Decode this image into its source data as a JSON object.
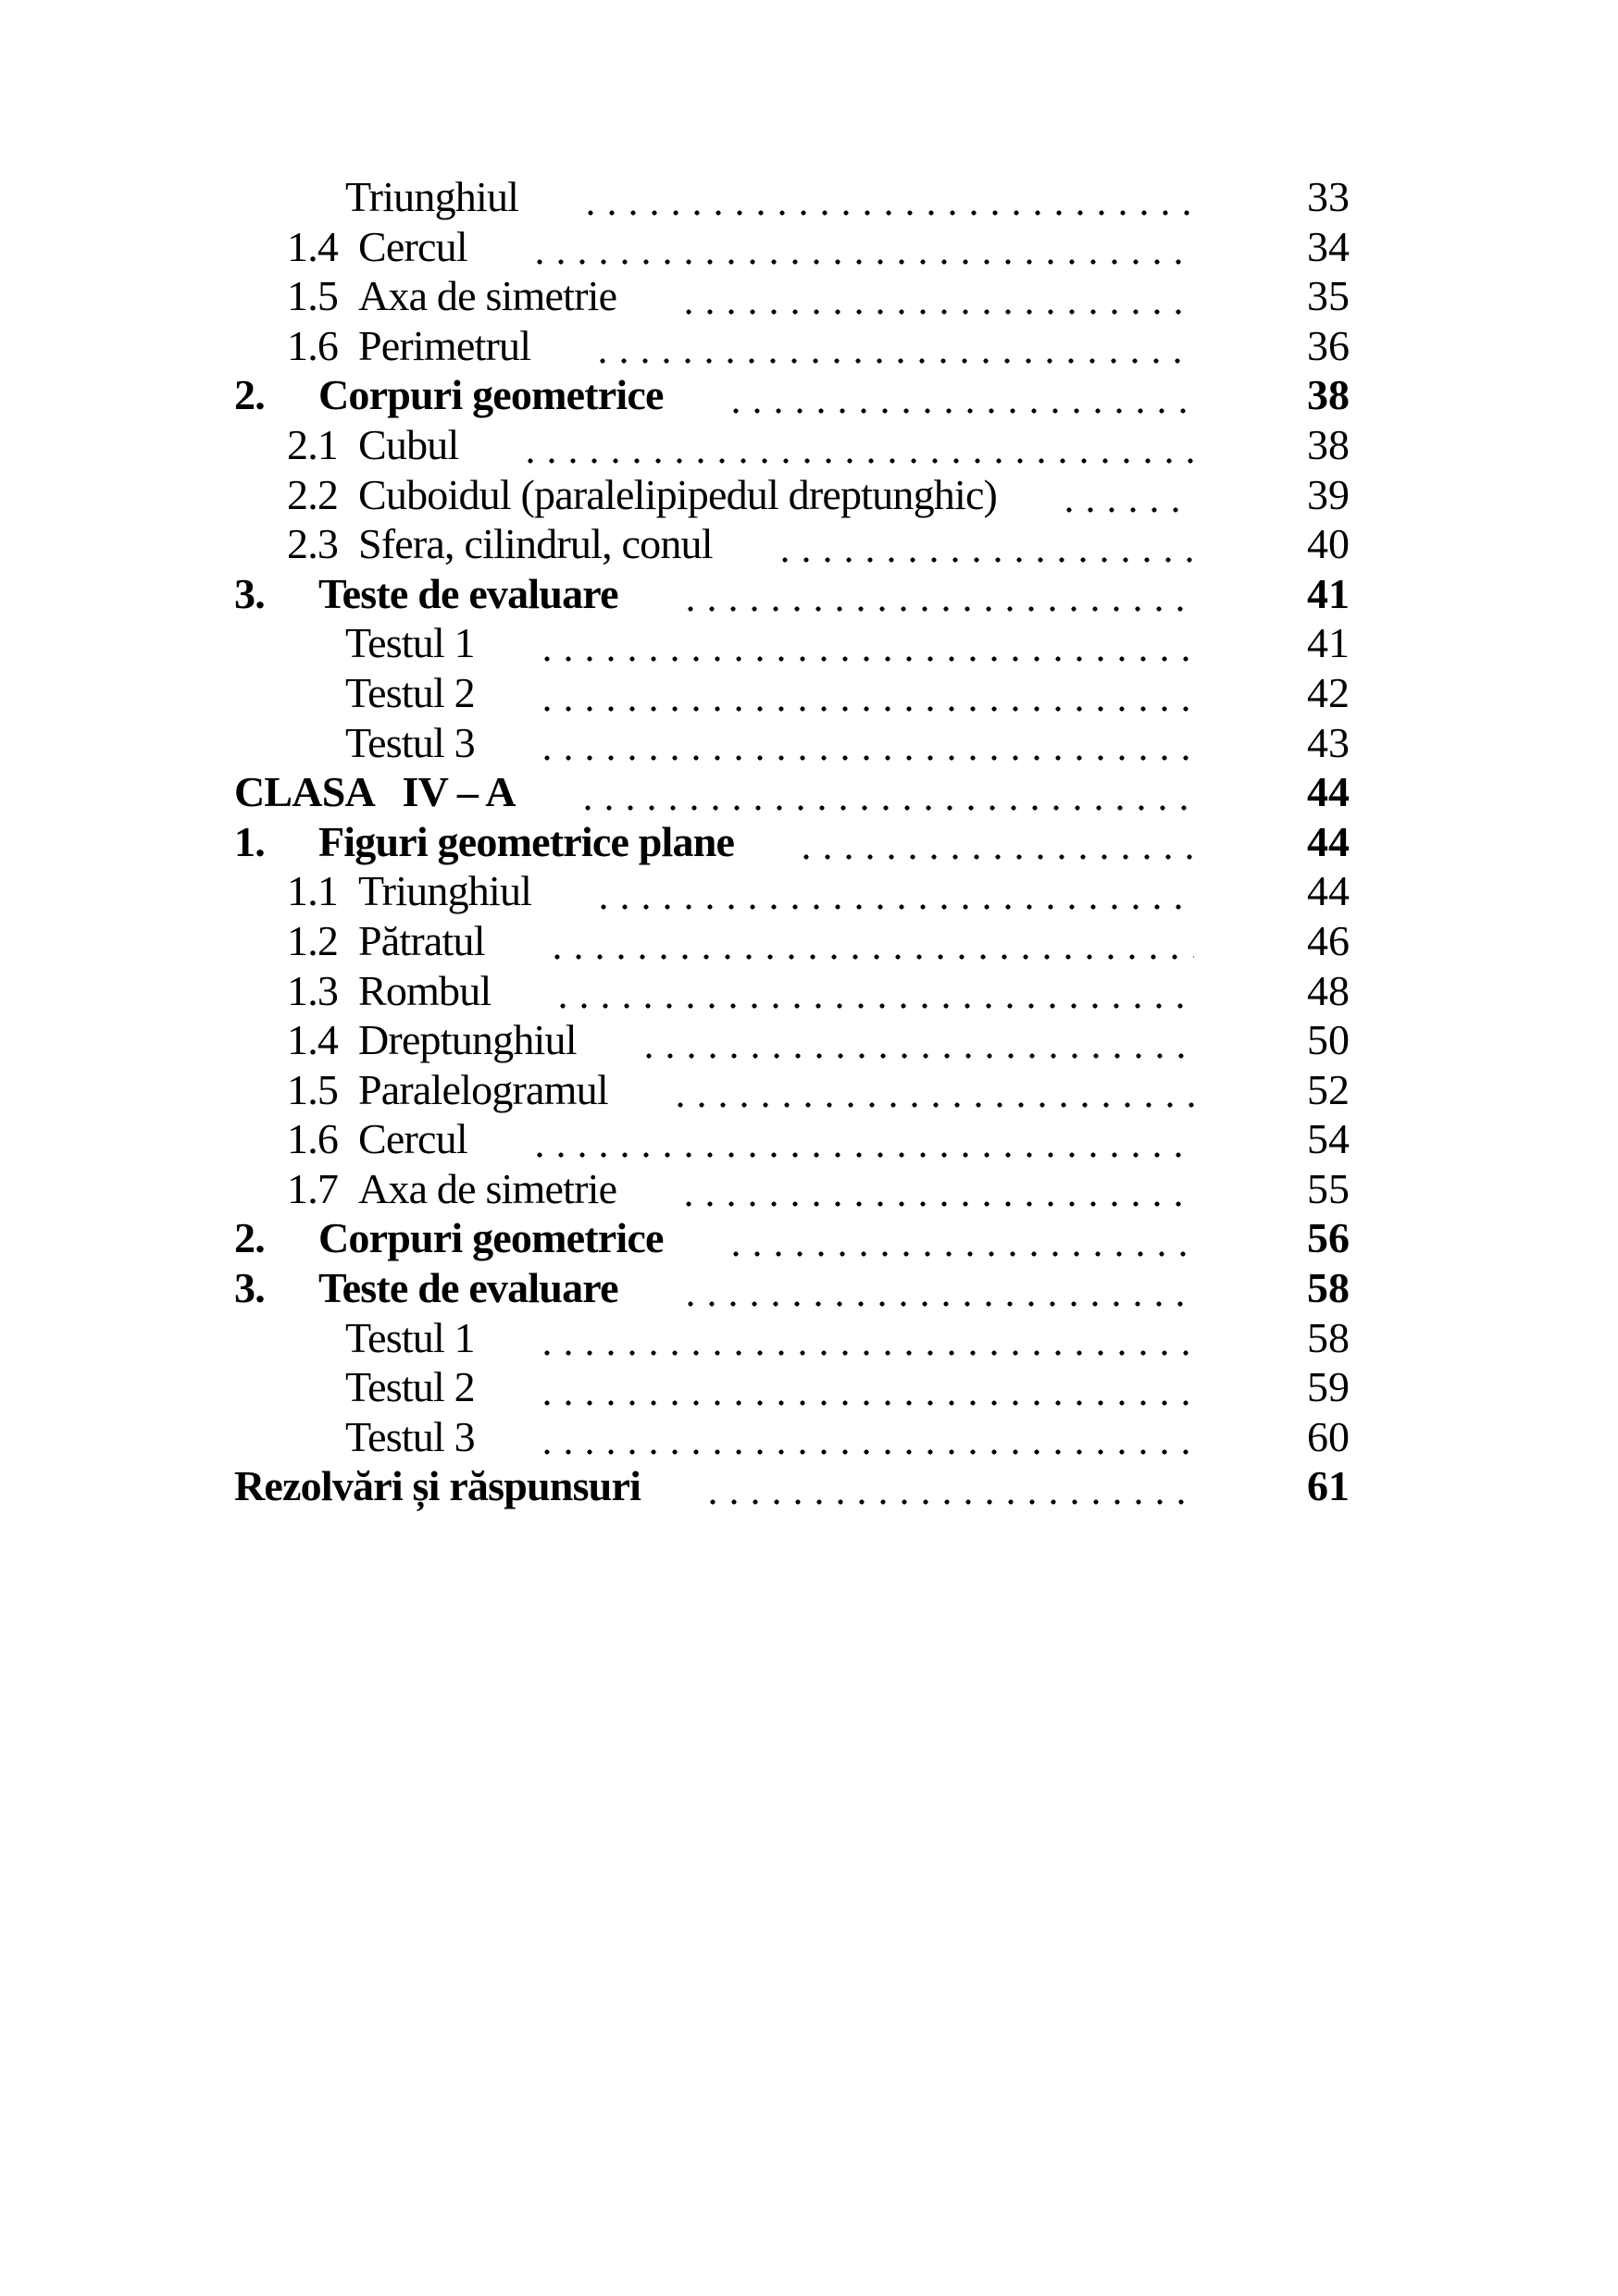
{
  "page": {
    "background": "#ffffff",
    "text_color": "#000000",
    "kind": "book-table-of-contents"
  },
  "toc": {
    "rows": [
      {
        "number": "",
        "label": "Triunghiul",
        "page": "33",
        "level": 2,
        "bold": false
      },
      {
        "number": "1.4",
        "label": "Cercul",
        "page": "34",
        "level": 1,
        "bold": false
      },
      {
        "number": "1.5",
        "label": "Axa de simetrie",
        "page": "35",
        "level": 1,
        "bold": false
      },
      {
        "number": "1.6",
        "label": "Perimetrul",
        "page": "36",
        "level": 1,
        "bold": false
      },
      {
        "number": "2.",
        "label": "Corpuri geometrice",
        "page": "38",
        "level": 0,
        "bold": true
      },
      {
        "number": "2.1",
        "label": "Cubul",
        "page": "38",
        "level": 1,
        "bold": false
      },
      {
        "number": "2.2",
        "label": "Cuboidul (paralelipipedul dreptunghic)",
        "page": "39",
        "level": 1,
        "bold": false
      },
      {
        "number": "2.3",
        "label": "Sfera, cilindrul, conul",
        "page": "40",
        "level": 1,
        "bold": false
      },
      {
        "number": "3.",
        "label": "Teste de evaluare",
        "page": "41",
        "level": 0,
        "bold": true
      },
      {
        "number": "",
        "label": "Testul 1",
        "page": "41",
        "level": 2,
        "bold": false
      },
      {
        "number": "",
        "label": "Testul 2",
        "page": "42",
        "level": 2,
        "bold": false
      },
      {
        "number": "",
        "label": "Testul 3",
        "page": "43",
        "level": 2,
        "bold": false
      },
      {
        "number": "",
        "label": "CLASA   IV – A",
        "page": "44",
        "level": 0,
        "bold": true
      },
      {
        "number": "1.",
        "label": "Figuri geometrice plane",
        "page": "44",
        "level": 0,
        "bold": true
      },
      {
        "number": "1.1",
        "label": "Triunghiul",
        "page": "44",
        "level": 1,
        "bold": false
      },
      {
        "number": "1.2",
        "label": "Pătratul",
        "page": "46",
        "level": 1,
        "bold": false
      },
      {
        "number": "1.3",
        "label": "Rombul",
        "page": "48",
        "level": 1,
        "bold": false
      },
      {
        "number": "1.4",
        "label": "Dreptunghiul",
        "page": "50",
        "level": 1,
        "bold": false
      },
      {
        "number": "1.5",
        "label": "Paralelogramul",
        "page": "52",
        "level": 1,
        "bold": false
      },
      {
        "number": "1.6",
        "label": "Cercul",
        "page": "54",
        "level": 1,
        "bold": false
      },
      {
        "number": "1.7",
        "label": "Axa de simetrie",
        "page": "55",
        "level": 1,
        "bold": false
      },
      {
        "number": "2.",
        "label": "Corpuri geometrice",
        "page": "56",
        "level": 0,
        "bold": true
      },
      {
        "number": "3.",
        "label": "Teste de evaluare",
        "page": "58",
        "level": 0,
        "bold": true
      },
      {
        "number": "",
        "label": "Testul 1",
        "page": "58",
        "level": 2,
        "bold": false
      },
      {
        "number": "",
        "label": "Testul 2",
        "page": "59",
        "level": 2,
        "bold": false
      },
      {
        "number": "",
        "label": "Testul 3",
        "page": "60",
        "level": 2,
        "bold": false
      },
      {
        "number": "",
        "label": "Rezolvări și răspunsuri",
        "page": "61",
        "level": 0,
        "bold": true
      }
    ]
  }
}
